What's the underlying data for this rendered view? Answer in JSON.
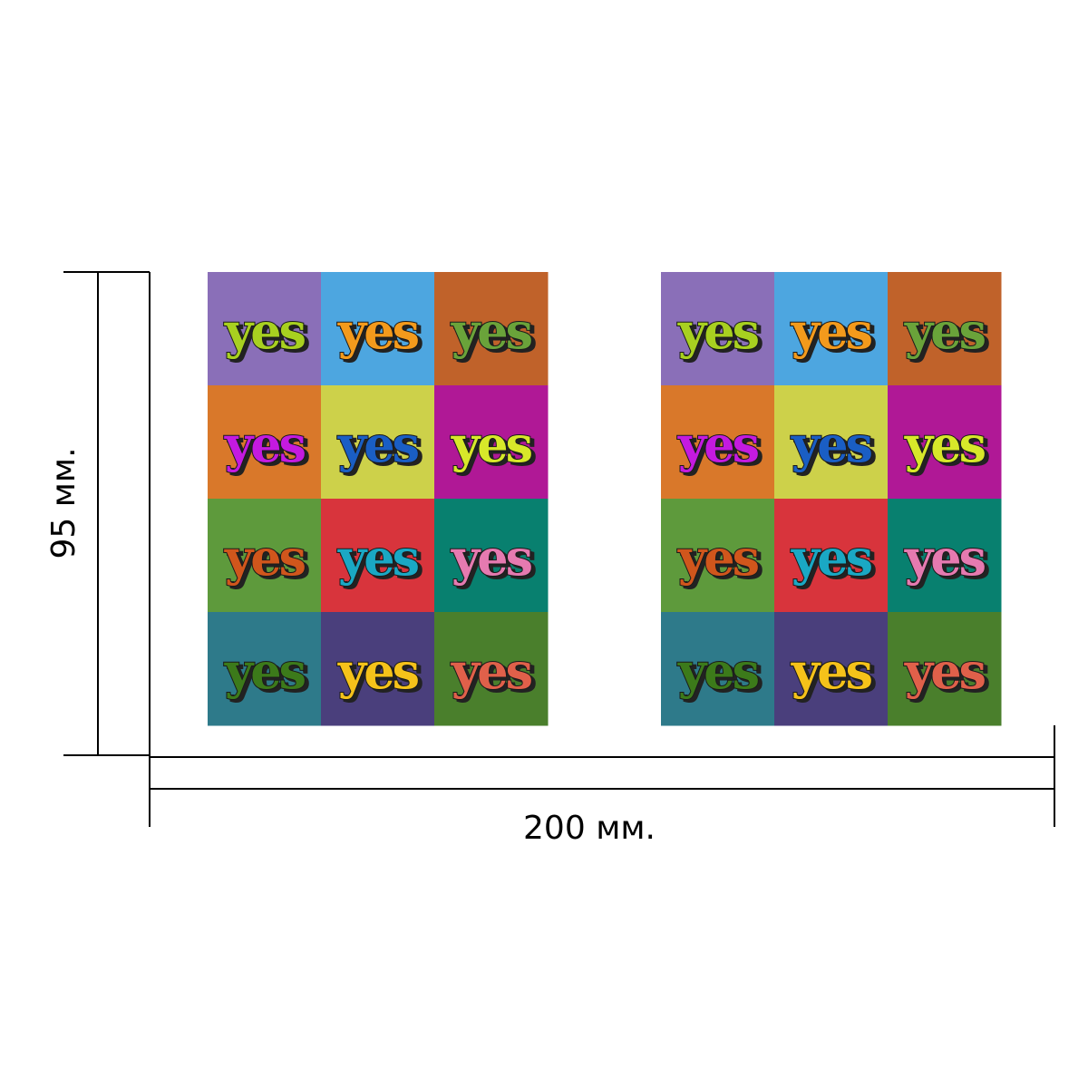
{
  "dimensions": {
    "height": {
      "label": "95 мм."
    },
    "width": {
      "label": "200 мм."
    }
  },
  "panels": [
    {
      "tiles": [
        {
          "label": "yes",
          "background": "#8a6fb8",
          "color": "#a8d020"
        },
        {
          "label": "yes",
          "background": "#4da6e0",
          "color": "#f39a1c"
        },
        {
          "label": "yes",
          "background": "#c0622a",
          "color": "#6aa33a"
        },
        {
          "label": "yes",
          "background": "#d9782a",
          "color": "#c41ae0"
        },
        {
          "label": "yes",
          "background": "#cdd14a",
          "color": "#1a5ec4"
        },
        {
          "label": "yes",
          "background": "#b01896",
          "color": "#d7e82a"
        },
        {
          "label": "yes",
          "background": "#5e9a3c",
          "color": "#d0561c"
        },
        {
          "label": "yes",
          "background": "#d8343c",
          "color": "#1aa8c4"
        },
        {
          "label": "yes",
          "background": "#08806f",
          "color": "#e57ab0"
        },
        {
          "label": "yes",
          "background": "#2e7a8a",
          "color": "#3c7a1a"
        },
        {
          "label": "yes",
          "background": "#4a3f7c",
          "color": "#f5c21a"
        },
        {
          "label": "yes",
          "background": "#4a7f2c",
          "color": "#e0604a"
        }
      ]
    },
    {
      "tiles": [
        {
          "label": "yes",
          "background": "#8a6fb8",
          "color": "#a8d020"
        },
        {
          "label": "yes",
          "background": "#4da6e0",
          "color": "#f39a1c"
        },
        {
          "label": "yes",
          "background": "#c0622a",
          "color": "#6aa33a"
        },
        {
          "label": "yes",
          "background": "#d9782a",
          "color": "#c41ae0"
        },
        {
          "label": "yes",
          "background": "#cdd14a",
          "color": "#1a5ec4"
        },
        {
          "label": "yes",
          "background": "#b01896",
          "color": "#d7e82a"
        },
        {
          "label": "yes",
          "background": "#5e9a3c",
          "color": "#d0561c"
        },
        {
          "label": "yes",
          "background": "#d8343c",
          "color": "#1aa8c4"
        },
        {
          "label": "yes",
          "background": "#08806f",
          "color": "#e57ab0"
        },
        {
          "label": "yes",
          "background": "#2e7a8a",
          "color": "#3c7a1a"
        },
        {
          "label": "yes",
          "background": "#4a3f7c",
          "color": "#f5c21a"
        },
        {
          "label": "yes",
          "background": "#4a7f2c",
          "color": "#e0604a"
        }
      ]
    }
  ]
}
